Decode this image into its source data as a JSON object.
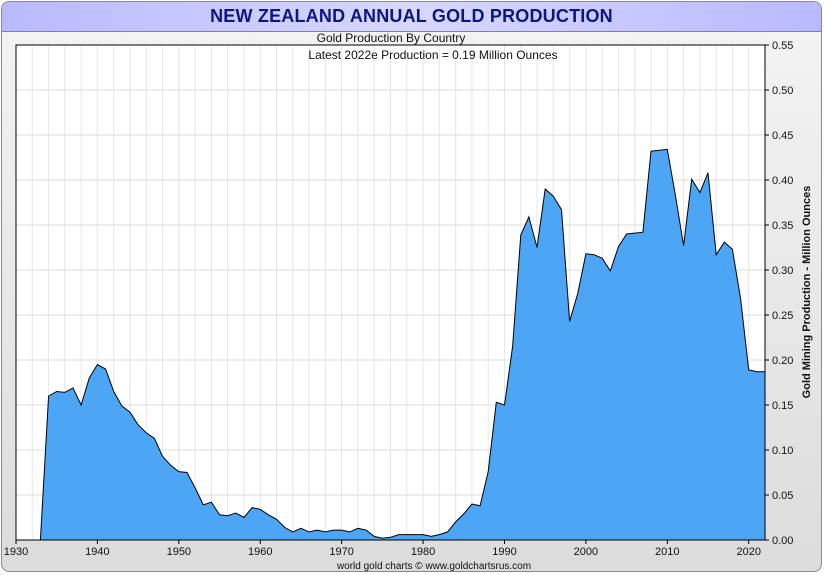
{
  "title": "NEW ZEALAND ANNUAL GOLD PRODUCTION",
  "chart_data": {
    "type": "area",
    "title": "NEW ZEALAND ANNUAL GOLD PRODUCTION",
    "subtitle": "Gold Production By Country",
    "subtitle2": "Latest 2022e Production = 0.19 Million Ounces",
    "xlabel": "",
    "ylabel": "Gold Mining Production - Million Ounces",
    "footer": "world gold charts © www.goldchartsrus.com",
    "xlim": [
      1930,
      2022
    ],
    "ylim": [
      0,
      0.55
    ],
    "x_ticks": [
      "1930",
      "1940",
      "1950",
      "1960",
      "1970",
      "1980",
      "1990",
      "2000",
      "2010",
      "2020"
    ],
    "x_tick_values": [
      1930,
      1940,
      1950,
      1960,
      1970,
      1980,
      1990,
      2000,
      2010,
      2020
    ],
    "y_ticks": [
      "0.00",
      "0.05",
      "0.10",
      "0.15",
      "0.20",
      "0.25",
      "0.30",
      "0.35",
      "0.40",
      "0.45",
      "0.50",
      "0.55"
    ],
    "y_tick_values": [
      0,
      0.05,
      0.1,
      0.15,
      0.2,
      0.25,
      0.3,
      0.35,
      0.4,
      0.45,
      0.5,
      0.55
    ],
    "grid": true,
    "fill_color": "#4da6f5",
    "line_color": "#000000",
    "series": [
      {
        "x": [
          1933,
          1934,
          1935,
          1936,
          1937,
          1938,
          1939,
          1940,
          1941,
          1942,
          1943,
          1944,
          1945,
          1946,
          1947,
          1948,
          1949,
          1950,
          1951,
          1952,
          1953,
          1954,
          1955,
          1956,
          1957,
          1958,
          1959,
          1960,
          1961,
          1962,
          1963,
          1964,
          1965,
          1966,
          1967,
          1968,
          1969,
          1970,
          1971,
          1972,
          1973,
          1974,
          1975,
          1976,
          1977,
          1978,
          1979,
          1980,
          1981,
          1982,
          1983,
          1984,
          1985,
          1986,
          1987,
          1988,
          1989,
          1990,
          1991,
          1992,
          1993,
          1994,
          1995,
          1996,
          1997,
          1998,
          1999,
          2000,
          2001,
          2002,
          2003,
          2004,
          2005,
          2006,
          2007,
          2008,
          2009,
          2010,
          2011,
          2012,
          2013,
          2014,
          2015,
          2016,
          2017,
          2018,
          2019,
          2020,
          2021,
          2022
        ],
        "values": [
          0.0,
          0.16,
          0.165,
          0.164,
          0.169,
          0.15,
          0.18,
          0.195,
          0.19,
          0.165,
          0.149,
          0.142,
          0.128,
          0.119,
          0.113,
          0.093,
          0.083,
          0.076,
          0.075,
          0.058,
          0.039,
          0.042,
          0.028,
          0.027,
          0.03,
          0.025,
          0.036,
          0.034,
          0.028,
          0.023,
          0.014,
          0.009,
          0.013,
          0.009,
          0.011,
          0.009,
          0.011,
          0.011,
          0.009,
          0.013,
          0.011,
          0.004,
          0.002,
          0.003,
          0.006,
          0.006,
          0.006,
          0.006,
          0.004,
          0.006,
          0.009,
          0.02,
          0.029,
          0.04,
          0.038,
          0.076,
          0.153,
          0.15,
          0.215,
          0.339,
          0.359,
          0.325,
          0.39,
          0.382,
          0.367,
          0.243,
          0.274,
          0.318,
          0.317,
          0.313,
          0.299,
          0.326,
          0.34,
          0.341,
          0.342,
          0.432,
          0.433,
          0.434,
          0.383,
          0.327,
          0.401,
          0.386,
          0.408,
          0.317,
          0.331,
          0.323,
          0.268,
          0.189,
          0.187,
          0.187
        ]
      }
    ]
  }
}
